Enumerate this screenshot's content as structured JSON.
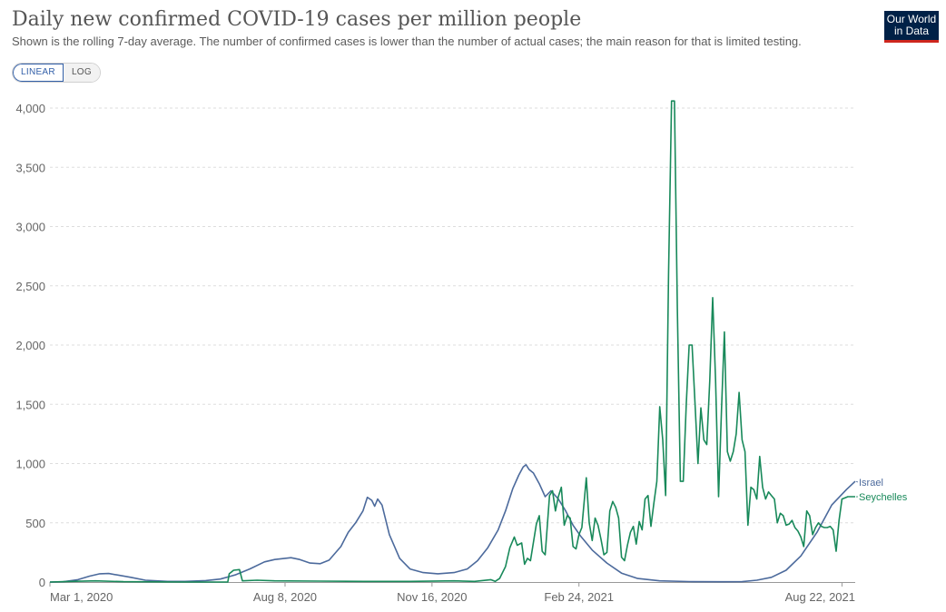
{
  "header": {
    "title": "Daily new confirmed COVID-19 cases per million people",
    "subtitle": "Shown is the rolling 7-day average. The number of confirmed cases is lower than the number of actual cases; the main reason for that is limited testing."
  },
  "logo": {
    "line1": "Our World",
    "line2": "in Data"
  },
  "scale_toggle": {
    "linear_label": "LINEAR",
    "log_label": "LOG",
    "selected": "LINEAR"
  },
  "colors": {
    "israel": "#4c6a9c",
    "seychelles": "#18895a",
    "grid": "#dddddd",
    "axis": "#999999"
  },
  "chart_data": {
    "type": "line",
    "title": "Daily new confirmed COVID-19 cases per million people",
    "xlim": [
      "2020-03-01",
      "2021-08-31"
    ],
    "ylim": [
      0,
      4200
    ],
    "y_ticks": [
      0,
      500,
      1000,
      1500,
      2000,
      2500,
      3000,
      3500,
      4000
    ],
    "y_tick_labels": [
      "0",
      "500",
      "1,000",
      "1,500",
      "2,000",
      "2,500",
      "3,000",
      "3,500",
      "4,000"
    ],
    "x_ticks": [
      "2020-03-01",
      "2020-08-08",
      "2020-11-16",
      "2021-02-24",
      "2021-08-22"
    ],
    "x_tick_labels": [
      "Mar 1, 2020",
      "Aug 8, 2020",
      "Nov 16, 2020",
      "Feb 24, 2021",
      "Aug 22, 2021"
    ],
    "grid": "horizontal",
    "legend": "inline-right",
    "series": [
      {
        "name": "Israel",
        "color": "#4c6a9c",
        "points": [
          [
            "2020-03-01",
            0
          ],
          [
            "2020-03-10",
            2
          ],
          [
            "2020-03-20",
            20
          ],
          [
            "2020-03-28",
            50
          ],
          [
            "2020-04-04",
            70
          ],
          [
            "2020-04-10",
            72
          ],
          [
            "2020-04-18",
            55
          ],
          [
            "2020-04-25",
            40
          ],
          [
            "2020-05-05",
            15
          ],
          [
            "2020-05-20",
            5
          ],
          [
            "2020-06-01",
            5
          ],
          [
            "2020-06-15",
            12
          ],
          [
            "2020-06-25",
            25
          ],
          [
            "2020-07-05",
            60
          ],
          [
            "2020-07-15",
            110
          ],
          [
            "2020-07-25",
            170
          ],
          [
            "2020-08-01",
            190
          ],
          [
            "2020-08-12",
            205
          ],
          [
            "2020-08-18",
            190
          ],
          [
            "2020-08-25",
            160
          ],
          [
            "2020-09-01",
            155
          ],
          [
            "2020-09-07",
            185
          ],
          [
            "2020-09-15",
            300
          ],
          [
            "2020-09-20",
            420
          ],
          [
            "2020-09-25",
            500
          ],
          [
            "2020-09-30",
            600
          ],
          [
            "2020-10-03",
            715
          ],
          [
            "2020-10-06",
            690
          ],
          [
            "2020-10-08",
            640
          ],
          [
            "2020-10-10",
            700
          ],
          [
            "2020-10-13",
            650
          ],
          [
            "2020-10-18",
            400
          ],
          [
            "2020-10-25",
            200
          ],
          [
            "2020-11-01",
            110
          ],
          [
            "2020-11-10",
            80
          ],
          [
            "2020-11-20",
            70
          ],
          [
            "2020-12-01",
            80
          ],
          [
            "2020-12-10",
            110
          ],
          [
            "2020-12-17",
            180
          ],
          [
            "2020-12-24",
            290
          ],
          [
            "2020-12-31",
            440
          ],
          [
            "2021-01-05",
            600
          ],
          [
            "2021-01-10",
            790
          ],
          [
            "2021-01-14",
            900
          ],
          [
            "2021-01-17",
            970
          ],
          [
            "2021-01-19",
            990
          ],
          [
            "2021-01-21",
            950
          ],
          [
            "2021-01-24",
            920
          ],
          [
            "2021-01-28",
            830
          ],
          [
            "2021-02-01",
            720
          ],
          [
            "2021-02-05",
            770
          ],
          [
            "2021-02-10",
            700
          ],
          [
            "2021-02-15",
            600
          ],
          [
            "2021-02-20",
            480
          ],
          [
            "2021-02-25",
            390
          ],
          [
            "2021-03-05",
            270
          ],
          [
            "2021-03-15",
            160
          ],
          [
            "2021-03-25",
            75
          ],
          [
            "2021-04-05",
            30
          ],
          [
            "2021-04-20",
            10
          ],
          [
            "2021-05-10",
            4
          ],
          [
            "2021-06-01",
            2
          ],
          [
            "2021-06-15",
            3
          ],
          [
            "2021-06-25",
            15
          ],
          [
            "2021-07-05",
            40
          ],
          [
            "2021-07-15",
            100
          ],
          [
            "2021-07-25",
            220
          ],
          [
            "2021-08-05",
            420
          ],
          [
            "2021-08-15",
            650
          ],
          [
            "2021-08-25",
            780
          ],
          [
            "2021-08-31",
            850
          ]
        ]
      },
      {
        "name": "Seychelles",
        "color": "#18895a",
        "points": [
          [
            "2020-03-01",
            0
          ],
          [
            "2020-03-15",
            5
          ],
          [
            "2020-04-01",
            10
          ],
          [
            "2020-04-20",
            3
          ],
          [
            "2020-06-01",
            0
          ],
          [
            "2020-06-30",
            0
          ],
          [
            "2020-07-01",
            70
          ],
          [
            "2020-07-04",
            100
          ],
          [
            "2020-07-08",
            105
          ],
          [
            "2020-07-10",
            10
          ],
          [
            "2020-07-20",
            15
          ],
          [
            "2020-08-01",
            10
          ],
          [
            "2020-09-01",
            8
          ],
          [
            "2020-10-01",
            5
          ],
          [
            "2020-11-01",
            5
          ],
          [
            "2020-12-01",
            10
          ],
          [
            "2020-12-15",
            5
          ],
          [
            "2020-12-26",
            20
          ],
          [
            "2020-12-29",
            5
          ],
          [
            "2021-01-01",
            30
          ],
          [
            "2021-01-05",
            130
          ],
          [
            "2021-01-08",
            290
          ],
          [
            "2021-01-11",
            380
          ],
          [
            "2021-01-13",
            310
          ],
          [
            "2021-01-16",
            330
          ],
          [
            "2021-01-18",
            150
          ],
          [
            "2021-01-20",
            200
          ],
          [
            "2021-01-22",
            180
          ],
          [
            "2021-01-26",
            490
          ],
          [
            "2021-01-28",
            560
          ],
          [
            "2021-01-30",
            260
          ],
          [
            "2021-02-01",
            230
          ],
          [
            "2021-02-04",
            730
          ],
          [
            "2021-02-06",
            770
          ],
          [
            "2021-02-08",
            600
          ],
          [
            "2021-02-10",
            720
          ],
          [
            "2021-02-12",
            800
          ],
          [
            "2021-02-14",
            480
          ],
          [
            "2021-02-16",
            560
          ],
          [
            "2021-02-18",
            540
          ],
          [
            "2021-02-20",
            300
          ],
          [
            "2021-02-22",
            280
          ],
          [
            "2021-02-24",
            400
          ],
          [
            "2021-02-26",
            460
          ],
          [
            "2021-03-01",
            880
          ],
          [
            "2021-03-03",
            500
          ],
          [
            "2021-03-05",
            350
          ],
          [
            "2021-03-07",
            540
          ],
          [
            "2021-03-09",
            480
          ],
          [
            "2021-03-11",
            360
          ],
          [
            "2021-03-13",
            230
          ],
          [
            "2021-03-15",
            250
          ],
          [
            "2021-03-17",
            600
          ],
          [
            "2021-03-19",
            680
          ],
          [
            "2021-03-21",
            630
          ],
          [
            "2021-03-23",
            540
          ],
          [
            "2021-03-25",
            210
          ],
          [
            "2021-03-27",
            180
          ],
          [
            "2021-03-29",
            310
          ],
          [
            "2021-03-31",
            420
          ],
          [
            "2021-04-02",
            470
          ],
          [
            "2021-04-04",
            320
          ],
          [
            "2021-04-06",
            510
          ],
          [
            "2021-04-08",
            440
          ],
          [
            "2021-04-10",
            700
          ],
          [
            "2021-04-12",
            730
          ],
          [
            "2021-04-14",
            470
          ],
          [
            "2021-04-16",
            670
          ],
          [
            "2021-04-18",
            850
          ],
          [
            "2021-04-20",
            1480
          ],
          [
            "2021-04-22",
            1200
          ],
          [
            "2021-04-24",
            730
          ],
          [
            "2021-04-26",
            2600
          ],
          [
            "2021-04-28",
            4060
          ],
          [
            "2021-04-30",
            4060
          ],
          [
            "2021-05-02",
            2300
          ],
          [
            "2021-05-04",
            850
          ],
          [
            "2021-05-06",
            850
          ],
          [
            "2021-05-08",
            1500
          ],
          [
            "2021-05-10",
            2000
          ],
          [
            "2021-05-12",
            2000
          ],
          [
            "2021-05-14",
            1500
          ],
          [
            "2021-05-16",
            1000
          ],
          [
            "2021-05-18",
            1470
          ],
          [
            "2021-05-20",
            1200
          ],
          [
            "2021-05-22",
            1160
          ],
          [
            "2021-05-24",
            1700
          ],
          [
            "2021-05-26",
            2400
          ],
          [
            "2021-05-28",
            1700
          ],
          [
            "2021-05-30",
            720
          ],
          [
            "2021-06-01",
            1450
          ],
          [
            "2021-06-03",
            2110
          ],
          [
            "2021-06-05",
            1100
          ],
          [
            "2021-06-07",
            1020
          ],
          [
            "2021-06-09",
            1100
          ],
          [
            "2021-06-11",
            1250
          ],
          [
            "2021-06-13",
            1600
          ],
          [
            "2021-06-15",
            1200
          ],
          [
            "2021-06-17",
            1100
          ],
          [
            "2021-06-19",
            480
          ],
          [
            "2021-06-21",
            800
          ],
          [
            "2021-06-23",
            780
          ],
          [
            "2021-06-25",
            700
          ],
          [
            "2021-06-27",
            1060
          ],
          [
            "2021-06-29",
            800
          ],
          [
            "2021-07-01",
            700
          ],
          [
            "2021-07-03",
            760
          ],
          [
            "2021-07-05",
            730
          ],
          [
            "2021-07-07",
            700
          ],
          [
            "2021-07-09",
            500
          ],
          [
            "2021-07-11",
            580
          ],
          [
            "2021-07-13",
            560
          ],
          [
            "2021-07-15",
            480
          ],
          [
            "2021-07-17",
            490
          ],
          [
            "2021-07-19",
            520
          ],
          [
            "2021-07-21",
            460
          ],
          [
            "2021-07-23",
            430
          ],
          [
            "2021-07-25",
            380
          ],
          [
            "2021-07-27",
            300
          ],
          [
            "2021-07-29",
            600
          ],
          [
            "2021-07-31",
            560
          ],
          [
            "2021-08-02",
            400
          ],
          [
            "2021-08-04",
            460
          ],
          [
            "2021-08-06",
            500
          ],
          [
            "2021-08-08",
            470
          ],
          [
            "2021-08-10",
            460
          ],
          [
            "2021-08-12",
            460
          ],
          [
            "2021-08-14",
            470
          ],
          [
            "2021-08-16",
            440
          ],
          [
            "2021-08-18",
            260
          ],
          [
            "2021-08-20",
            520
          ],
          [
            "2021-08-22",
            700
          ],
          [
            "2021-08-26",
            720
          ],
          [
            "2021-08-31",
            720
          ]
        ]
      }
    ]
  }
}
